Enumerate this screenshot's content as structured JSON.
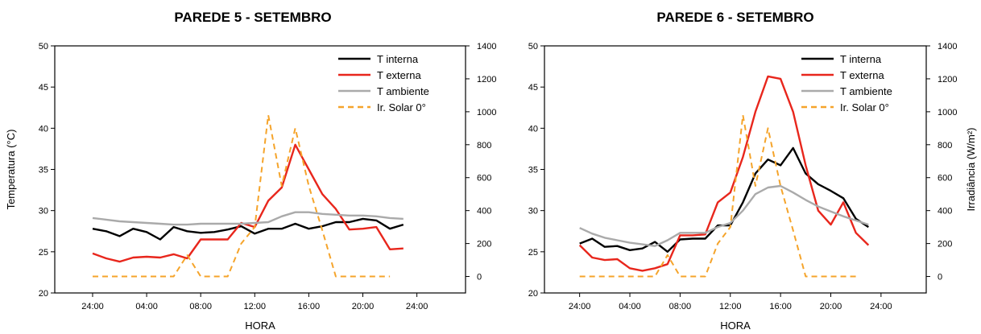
{
  "chart_data": [
    {
      "type": "line",
      "title": "PAREDE 5 - SETEMBRO",
      "xlabel": "HORA",
      "ylabel": "Temperatura (°C)",
      "y2label": "",
      "xticks": [
        "24:00",
        "04:00",
        "08:00",
        "12:00",
        "16:00",
        "20:00",
        "24:00"
      ],
      "ylim": [
        20,
        50
      ],
      "yticks": [
        20,
        25,
        30,
        35,
        40,
        45,
        50
      ],
      "y2lim": [
        -100,
        1400
      ],
      "y2ticks": [
        0,
        200,
        400,
        600,
        800,
        1000,
        1200,
        1400
      ],
      "x": [
        0,
        1,
        2,
        3,
        4,
        5,
        6,
        7,
        8,
        9,
        10,
        11,
        12,
        13,
        14,
        15,
        16,
        17,
        18,
        19,
        20,
        21,
        22,
        23
      ],
      "legend_position": "top-right",
      "series": [
        {
          "name": "T interna",
          "axis": "left",
          "color": "#000000",
          "dash": "",
          "values": [
            27.8,
            27.5,
            26.9,
            27.8,
            27.4,
            26.5,
            28.0,
            27.5,
            27.3,
            27.4,
            27.7,
            28.1,
            27.2,
            27.8,
            27.8,
            28.4,
            27.8,
            28.1,
            28.6,
            28.6,
            29.0,
            28.8,
            27.8,
            28.3
          ]
        },
        {
          "name": "T externa",
          "axis": "left",
          "color": "#e8261c",
          "dash": "",
          "values": [
            24.8,
            24.2,
            23.8,
            24.3,
            24.4,
            24.3,
            24.7,
            24.2,
            26.5,
            26.5,
            26.5,
            28.5,
            28.0,
            31.2,
            32.8,
            38.0,
            35.0,
            32.0,
            30.2,
            27.7,
            27.8,
            28.0,
            25.3,
            25.4
          ]
        },
        {
          "name": "T ambiente",
          "axis": "left",
          "color": "#aaaaaa",
          "dash": "",
          "values": [
            29.1,
            28.9,
            28.7,
            28.6,
            28.5,
            28.4,
            28.3,
            28.3,
            28.4,
            28.4,
            28.4,
            28.4,
            28.5,
            28.6,
            29.3,
            29.8,
            29.8,
            29.6,
            29.5,
            29.4,
            29.4,
            29.3,
            29.1,
            29.0
          ]
        },
        {
          "name": "Ir. Solar 0°",
          "axis": "right",
          "color": "#f5a42b",
          "dash": "7,5",
          "x": [
            0,
            1,
            2,
            3,
            4,
            5,
            6,
            7,
            8,
            9,
            10,
            11,
            12,
            13,
            14,
            15,
            16,
            17,
            18,
            19,
            20,
            21,
            22
          ],
          "values": [
            0,
            0,
            0,
            0,
            0,
            0,
            0,
            130,
            0,
            0,
            0,
            200,
            300,
            980,
            550,
            900,
            550,
            280,
            0,
            0,
            0,
            0,
            0
          ]
        }
      ]
    },
    {
      "type": "line",
      "title": "PAREDE 6 - SETEMBRO",
      "xlabel": "HORA",
      "ylabel": "",
      "y2label": "Irradiância (W/m²)",
      "xticks": [
        "24:00",
        "04:00",
        "08:00",
        "12:00",
        "16:00",
        "20:00",
        "24:00"
      ],
      "ylim": [
        20,
        50
      ],
      "yticks": [
        20,
        25,
        30,
        35,
        40,
        45,
        50
      ],
      "y2lim": [
        -100,
        1400
      ],
      "y2ticks": [
        0,
        200,
        400,
        600,
        800,
        1000,
        1200,
        1400
      ],
      "x": [
        0,
        1,
        2,
        3,
        4,
        5,
        6,
        7,
        8,
        9,
        10,
        11,
        12,
        13,
        14,
        15,
        16,
        17,
        18,
        19,
        20,
        21,
        22,
        23
      ],
      "legend_position": "top-right",
      "series": [
        {
          "name": "T interna",
          "axis": "left",
          "color": "#000000",
          "dash": "",
          "values": [
            26.0,
            26.6,
            25.6,
            25.7,
            25.2,
            25.4,
            26.2,
            25.0,
            26.5,
            26.6,
            26.6,
            28.2,
            28.2,
            31.0,
            34.5,
            36.2,
            35.5,
            37.6,
            34.5,
            33.2,
            32.4,
            31.5,
            29.0,
            28.0
          ]
        },
        {
          "name": "T externa",
          "axis": "left",
          "color": "#e8261c",
          "dash": "",
          "values": [
            25.8,
            24.3,
            24.0,
            24.1,
            23.0,
            22.7,
            23.0,
            23.5,
            27.0,
            27.0,
            27.1,
            31.0,
            32.2,
            36.5,
            42.0,
            46.3,
            46.0,
            42.0,
            35.5,
            30.0,
            28.3,
            31.0,
            27.3,
            25.8
          ]
        },
        {
          "name": "T ambiente",
          "axis": "left",
          "color": "#aaaaaa",
          "dash": "",
          "values": [
            27.9,
            27.2,
            26.7,
            26.4,
            26.1,
            25.9,
            25.7,
            26.4,
            27.3,
            27.3,
            27.3,
            28.0,
            28.5,
            30.0,
            32.0,
            32.8,
            33.0,
            32.2,
            31.3,
            30.5,
            29.9,
            29.3,
            28.8,
            28.3
          ]
        },
        {
          "name": "Ir. Solar 0°",
          "axis": "right",
          "color": "#f5a42b",
          "dash": "7,5",
          "x": [
            0,
            1,
            2,
            3,
            4,
            5,
            6,
            7,
            8,
            9,
            10,
            11,
            12,
            13,
            14,
            15,
            16,
            17,
            18,
            19,
            20,
            21,
            22
          ],
          "values": [
            0,
            0,
            0,
            0,
            0,
            0,
            0,
            130,
            0,
            0,
            0,
            200,
            300,
            980,
            550,
            900,
            550,
            280,
            0,
            0,
            0,
            0,
            0
          ]
        }
      ]
    }
  ]
}
